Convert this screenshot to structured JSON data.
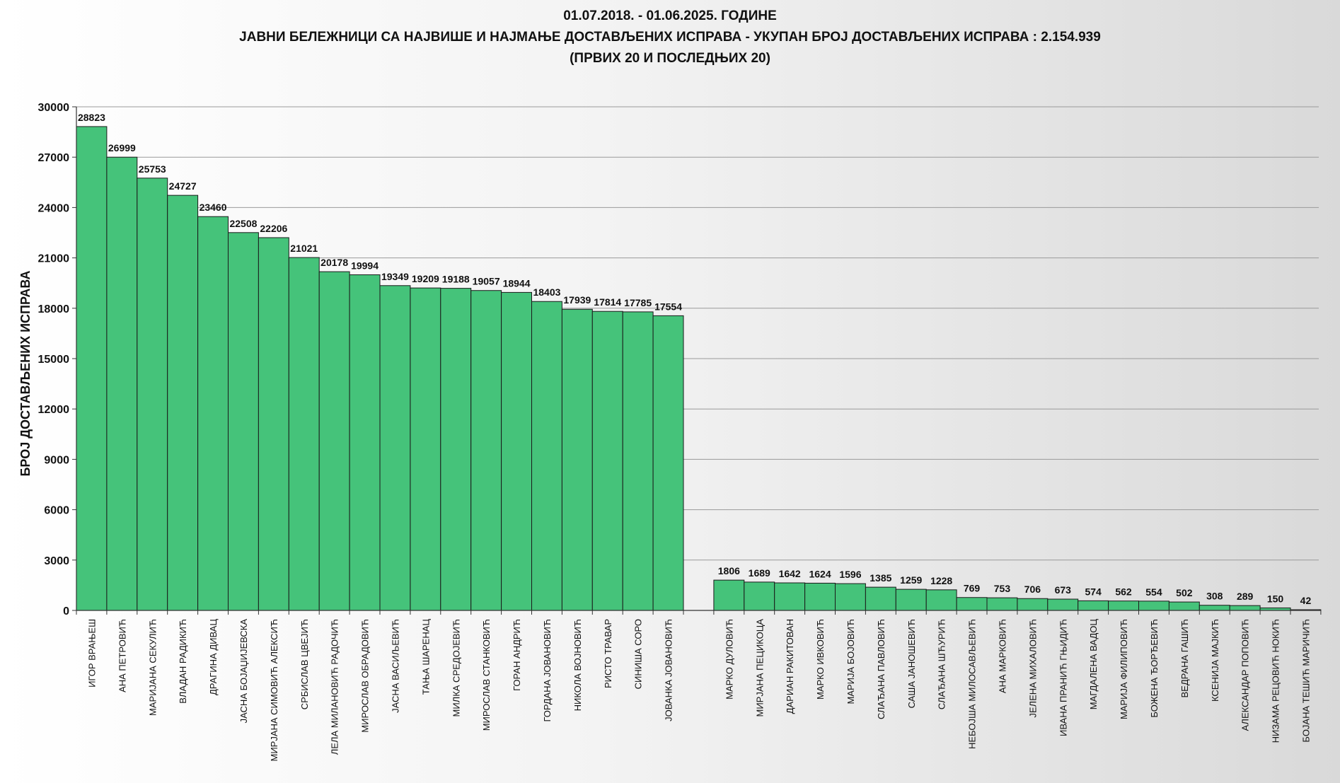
{
  "chart_data": {
    "type": "bar",
    "title_lines": [
      "01.07.2018. - 01.06.2025. ГОДИНЕ",
      "ЈАВНИ БЕЛЕЖНИЦИ СА НАЈВИШЕ И НАЈМАЊЕ ДОСТАВЉЕНИХ ИСПРАВА - УКУПАН БРОЈ ДОСТАВЉЕНИХ ИСПРАВА : 2.154.939",
      "(ПРВИХ 20 И ПОСЛЕДЊИХ 20)"
    ],
    "ylabel": "БРОЈ ДОСТАВЉЕНИХ ИСПРАВА",
    "ylim": [
      0,
      30000
    ],
    "yticks": [
      0,
      3000,
      6000,
      9000,
      12000,
      15000,
      18000,
      21000,
      24000,
      27000,
      30000
    ],
    "grid": true,
    "bar_color": "#45c37a",
    "groups": [
      {
        "categories": [
          "ИГОР ВРАЊЕШ",
          "АНА ПЕТРОВИЋ",
          "МАРИЈАНА СЕКУЛИЋ",
          "ВЛАДАН РАДИКИЋ",
          "ДРАГИНА ДИВАЦ",
          "ЈАСНА БОЈАЏИЈЕВСКА",
          "МИРЈАНА СИМОВИЋ АЛЕКСИЋ",
          "СРБИСЛАВ ЦВЕЈИЋ",
          "ЛЕЛА МИЛАНОВИЋ РАДОЧИЋ",
          "МИРОСЛАВ ОБРАДОВИЋ",
          "ЈАСНА ВАСИЉЕВИЋ",
          "ТАЊА ШАРЕНАЦ",
          "МИЛКА СРЕДОЈЕВИЋ",
          "МИРОСЛАВ СТАНКОВИЋ",
          "ГОРАН АНДРИЋ",
          "ГОРДАНА ЈОВАНОВИЋ",
          "НИКОЛА ВОЈНОВИЋ",
          "РИСТО ТРАВАР",
          "СИНИША СОРО",
          "ЈОВАНКА ЈОВАНОВИЋ"
        ],
        "values": [
          28823,
          26999,
          25753,
          24727,
          23460,
          22508,
          22206,
          21021,
          20178,
          19994,
          19349,
          19209,
          19188,
          19057,
          18944,
          18403,
          17939,
          17814,
          17785,
          17554
        ]
      },
      {
        "categories": [
          "МАРКО ДУЛОВИЋ",
          "МИРЈАНА ПЕЦИКОЦА",
          "ДАРИАН РАКИТОВАН",
          "МАРКО ИВКОВИЋ",
          "МАРИЈА БОЈОВИЋ",
          "СЛАЂАНА ПАВЛОВИЋ",
          "САША ЈАНОШЕВИЋ",
          "СЛАЂАНА ШЋУРИЋ",
          "НЕБОЈША МИЛОСАВЉЕВИЋ",
          "АНА МАРКОВИЋ",
          "ЈЕЛЕНА МИХАЛОВИЋ",
          "ИВАНА ПРАНИЋ ГЊИДИЋ",
          "МАГДАЛЕНА ВАДОЦ",
          "МАРИЈА ФИЛИПОВИЋ",
          "БОЖЕНА ЂОРЂЕВИЋ",
          "ВЕДРАНА ГАШИЋ",
          "КСЕНИЈА МАЈКИЋ",
          "АЛЕКСАНДАР ПОПОВИЋ",
          "НИЗАМА РЕЦОВИЋ НОКИЋ",
          "БОЈАНА ТЕШИЋ МАРИЧИЋ"
        ],
        "values": [
          1806,
          1689,
          1642,
          1624,
          1596,
          1385,
          1259,
          1228,
          769,
          753,
          706,
          673,
          574,
          562,
          554,
          502,
          308,
          289,
          150,
          42
        ]
      }
    ]
  }
}
